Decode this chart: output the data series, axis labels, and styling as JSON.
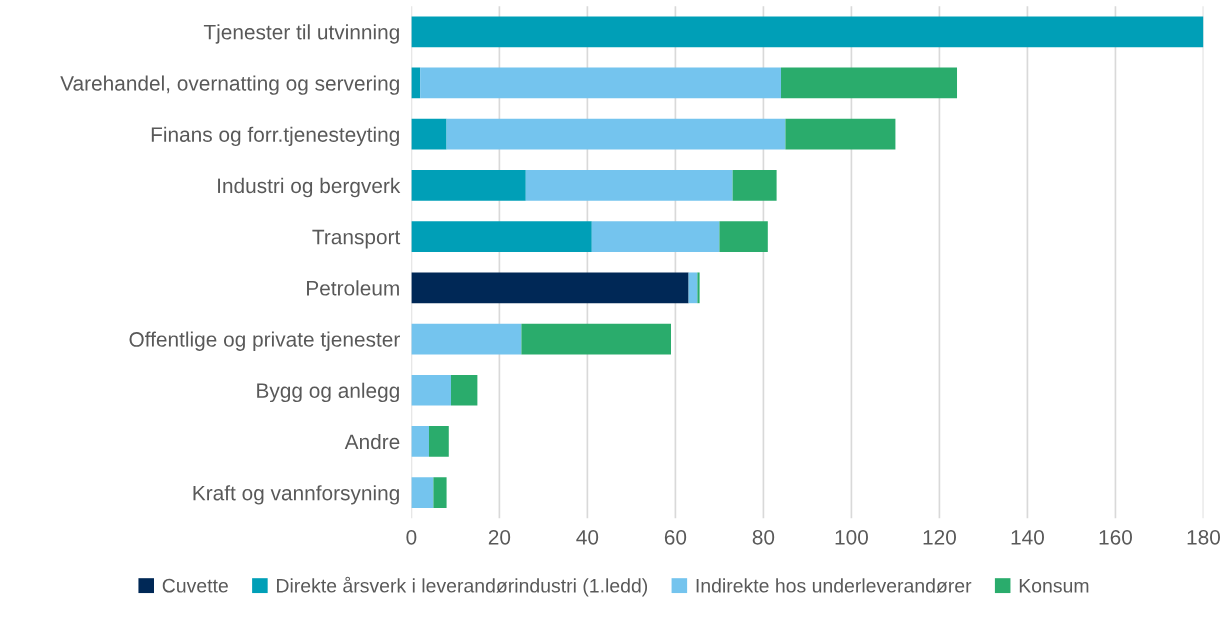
{
  "chart_data": {
    "type": "bar",
    "orientation": "horizontal",
    "stacked": true,
    "categories": [
      "Tjenester til utvinning",
      "Varehandel, overnatting og servering",
      "Finans og forr.tjenesteyting",
      "Industri og bergverk",
      "Transport",
      "Petroleum",
      "Offentlige og private tjenester",
      "Bygg og anlegg",
      "Andre",
      "Kraft og vannforsyning"
    ],
    "series": [
      {
        "name": "Cuvette",
        "color": "#002856",
        "values": [
          0,
          0,
          0,
          0,
          0,
          63,
          0,
          0,
          0,
          0
        ]
      },
      {
        "name": "Direkte årsverk i leverandørindustri (1.ledd)",
        "color": "#009fb7",
        "values": [
          180,
          2,
          8,
          26,
          41,
          0,
          0,
          0,
          0,
          0
        ]
      },
      {
        "name": "Indirekte hos underleverandører",
        "color": "#74c4ee",
        "values": [
          0,
          82,
          77,
          47,
          29,
          2,
          25,
          9,
          4,
          5
        ]
      },
      {
        "name": "Konsum",
        "color": "#2aac6c",
        "values": [
          0,
          40,
          25,
          10,
          11,
          0.5,
          34,
          6,
          4.5,
          3
        ]
      }
    ],
    "xlim": [
      0,
      180
    ],
    "xticks": [
      0,
      20,
      40,
      60,
      80,
      100,
      120,
      140,
      160,
      180
    ],
    "grid": "x",
    "legend": "bottom"
  }
}
